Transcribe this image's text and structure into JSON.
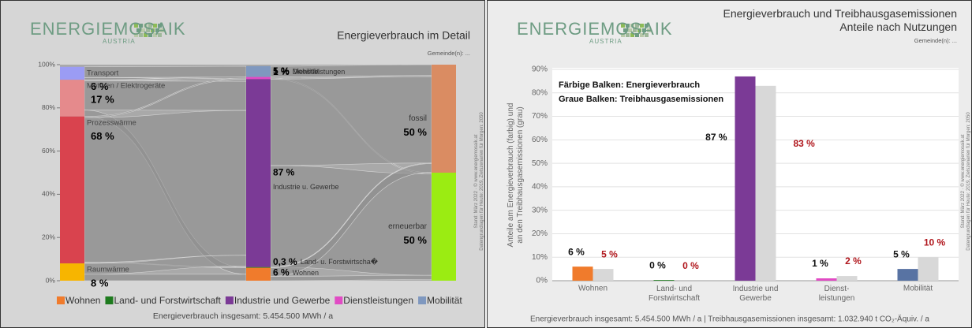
{
  "chart_data": [
    {
      "type": "sankey",
      "logo": "ENERGIEMOSAIK",
      "logo_sub": "AUSTRIA",
      "title": "Energieverbrauch im Detail",
      "subtitle": "Gemeinde(n): ...",
      "side_note": "Stand: März 2022 · © www.energiemosaik.at\nDatengrundlagen für Heute: 2019, Zielszenarien für Morgen: 2050",
      "ylim": [
        0,
        100
      ],
      "yticks": [
        {
          "value": 0,
          "label": "0%"
        },
        {
          "value": 20,
          "label": "20%"
        },
        {
          "value": 40,
          "label": "40%"
        },
        {
          "value": 60,
          "label": "60%"
        },
        {
          "value": 80,
          "label": "80%"
        },
        {
          "value": 100,
          "label": "100%"
        }
      ],
      "grid": false,
      "nodes": [
        {
          "name": "Transport",
          "value": 6,
          "value_label": "6 %",
          "color": "#9b9cf4",
          "column": 0
        },
        {
          "name": "Motoren / Elektrogeräte",
          "value": 17,
          "value_label": "17 %",
          "color": "#e58a8c",
          "column": 0
        },
        {
          "name": "Prozesswärme",
          "value": 68,
          "value_label": "68 %",
          "color": "#d9434e",
          "column": 0
        },
        {
          "name": "Raumwärme",
          "value": 8,
          "value_label": "8 %",
          "color": "#f7b500",
          "column": 0
        },
        {
          "name": "Mobilität",
          "value": 5,
          "value_label": "5 %",
          "color": "#7f98bf",
          "column": 1
        },
        {
          "name": "Dienstleistungen",
          "value": 1,
          "value_label": "1 %",
          "color": "#e14bc4",
          "column": 1
        },
        {
          "name": "Industrie u. Gewerbe",
          "value": 87,
          "value_label": "87 %",
          "color": "#7b3a96",
          "column": 1
        },
        {
          "name": "Land- u. Forstwirtscha�",
          "value": 0.3,
          "value_label": "0,3 %",
          "color": "#1e7b1e",
          "column": 1
        },
        {
          "name": "Wohnen",
          "value": 6,
          "value_label": "6 %",
          "color": "#f07b2c",
          "column": 1
        },
        {
          "name": "fossil",
          "value": 50,
          "value_label": "50 %",
          "color": "#da8c62",
          "column": 2
        },
        {
          "name": "erneuerbar",
          "value": 50,
          "value_label": "50 %",
          "color": "#9bec12",
          "column": 2
        }
      ],
      "links": [
        {
          "source": 0,
          "target": 4,
          "value": 5
        },
        {
          "source": 0,
          "target": 6,
          "value": 1
        },
        {
          "source": 1,
          "target": 5,
          "value": 0.5
        },
        {
          "source": 1,
          "target": 6,
          "value": 13.5
        },
        {
          "source": 1,
          "target": 8,
          "value": 3
        },
        {
          "source": 2,
          "target": 5,
          "value": 0.5
        },
        {
          "source": 2,
          "target": 6,
          "value": 67
        },
        {
          "source": 2,
          "target": 7,
          "value": 0.3
        },
        {
          "source": 3,
          "target": 6,
          "value": 5
        },
        {
          "source": 3,
          "target": 8,
          "value": 3
        },
        {
          "source": 4,
          "target": 9,
          "value": 5
        },
        {
          "source": 5,
          "target": 9,
          "value": 0.5
        },
        {
          "source": 5,
          "target": 10,
          "value": 0.5
        },
        {
          "source": 6,
          "target": 9,
          "value": 40
        },
        {
          "source": 6,
          "target": 10,
          "value": 47
        },
        {
          "source": 7,
          "target": 9,
          "value": 0.3
        },
        {
          "source": 8,
          "target": 9,
          "value": 4
        },
        {
          "source": 8,
          "target": 10,
          "value": 2
        }
      ],
      "legend": [
        {
          "name": "Wohnen",
          "color": "#f07b2c"
        },
        {
          "name": "Land- und Forstwirtschaft",
          "color": "#1e7b1e"
        },
        {
          "name": "Industrie und Gewerbe",
          "color": "#7b3a96"
        },
        {
          "name": "Dienstleistungen",
          "color": "#e14bc4"
        },
        {
          "name": "Mobilität",
          "color": "#7f98bf"
        }
      ],
      "footer": "Energieverbrauch insgesamt: 5.454.500 MWh / a"
    },
    {
      "type": "bar",
      "logo": "ENERGIEMOSAIK",
      "logo_sub": "AUSTRIA",
      "title": "Energieverbrauch und Treibhausgasemissionen\nAnteile nach Nutzungen",
      "subtitle": "Gemeinde(n): ...",
      "side_note": "Stand: März 2022 · © www.energiemosaik.at\nDatengrundlagen für Heute: 2019, Zielszenarien für Morgen: 2050",
      "y_label": "Anteile am Energieverbrauch (farbig) und\nan den Treibhausgasemissionen (grau)",
      "annotations": [
        "Färbige Balken: Energieverbrauch",
        "Graue Balken:   Treibhausgasemissionen"
      ],
      "ylim": [
        0,
        90
      ],
      "yticks": [
        {
          "value": 0,
          "label": "0%"
        },
        {
          "value": 10,
          "label": "10%"
        },
        {
          "value": 20,
          "label": "20%"
        },
        {
          "value": 30,
          "label": "30%"
        },
        {
          "value": 40,
          "label": "40%"
        },
        {
          "value": 50,
          "label": "50%"
        },
        {
          "value": 60,
          "label": "60%"
        },
        {
          "value": 70,
          "label": "70%"
        },
        {
          "value": 80,
          "label": "80%"
        },
        {
          "value": 90,
          "label": "90%"
        }
      ],
      "grid": true,
      "categories": [
        "Wohnen",
        "Land- und\nForstwirtschaft",
        "Industrie und\nGewerbe",
        "Dienst-\nleistungen",
        "Mobilität"
      ],
      "series": [
        {
          "colors": [
            "#f07b2c",
            "#1e7b1e",
            "#7b3a96",
            "#e14bc4",
            "#5873a3"
          ],
          "label_color": "#111111",
          "values": [
            6,
            0.3,
            87,
            1,
            5
          ],
          "value_labels": [
            "6 %",
            "0 %",
            "87 %",
            "1 %",
            "5 %"
          ]
        },
        {
          "color": "#d8d8d8",
          "label_color": "#b0161c",
          "values": [
            5,
            0,
            83,
            2,
            10
          ],
          "value_labels": [
            "5 %",
            "0 %",
            "83 %",
            "2 %",
            "10 %"
          ]
        }
      ],
      "footer": "Energieverbrauch insgesamt: 5.454.500 MWh / a  |  Treibhausgasemissionen insgesamt: 1.032.940 t CO₂-Äquiv. / a"
    }
  ]
}
